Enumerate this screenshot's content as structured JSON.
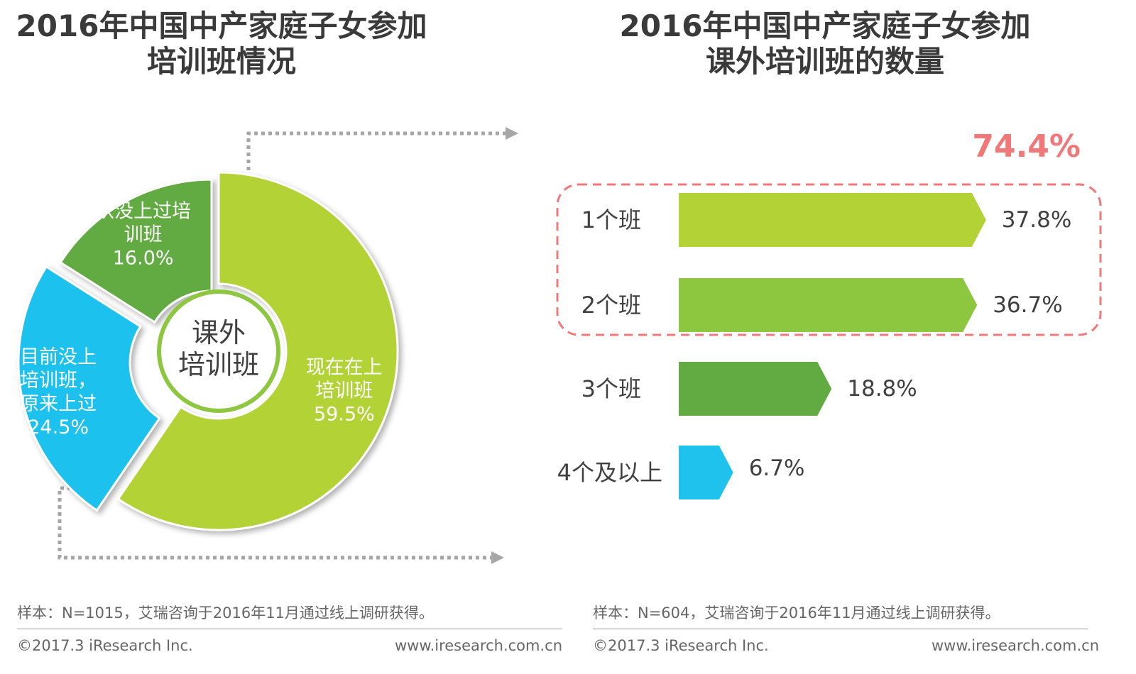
{
  "left_panel": {
    "title_line1": "2016年中国中产家庭子女参加",
    "title_line2": "培训班情况",
    "center_line1": "课外",
    "center_line2": "培训班",
    "sample_note": "样本：N=1015，艾瑞咨询于2016年11月通过线上调研获得。",
    "copyright": "©2017.3  iResearch Inc.",
    "url": "www.iresearch.com.cn"
  },
  "right_panel": {
    "title_line1": "2016年中国中产家庭子女参加",
    "title_line2": "课外培训班的数量",
    "highlight_total": "74.4%",
    "sample_note": "样本：N=604，艾瑞咨询于2016年11月通过线上调研获得。",
    "copyright": "©2017.3  iResearch Inc.",
    "url": "www.iresearch.com.cn"
  },
  "colors": {
    "green_light": "#b2d235",
    "green_mid": "#8dc63f",
    "green_dark": "#62ab43",
    "blue": "#1fc2ed",
    "highlight_red": "#f07878",
    "arrow_gray": "#a6a6a6"
  },
  "chart_data": [
    {
      "type": "pie",
      "variant": "donut",
      "title": "2016年中国中产家庭子女参加培训班情况",
      "slices": [
        {
          "label_lines": [
            "现在在上",
            "培训班"
          ],
          "value": 59.5,
          "value_label": "59.5%",
          "color": "#b2d235"
        },
        {
          "label_lines": [
            "目前没上",
            "培训班，",
            "原来上过"
          ],
          "value": 24.5,
          "value_label": "24.5%",
          "color": "#1fc2ed"
        },
        {
          "label_lines": [
            "从没上过培",
            "训班"
          ],
          "value": 16.0,
          "value_label": "16.0%",
          "color": "#62ab43"
        }
      ]
    },
    {
      "type": "bar",
      "orientation": "horizontal",
      "title": "2016年中国中产家庭子女参加课外培训班的数量",
      "categories": [
        "1个班",
        "2个班",
        "3个班",
        "4个及以上"
      ],
      "values": [
        37.8,
        36.7,
        18.8,
        6.7
      ],
      "value_labels": [
        "37.8%",
        "36.7%",
        "18.8%",
        "6.7%"
      ],
      "colors": [
        "#b2d235",
        "#8dc63f",
        "#62ab43",
        "#1fc2ed"
      ],
      "highlight": {
        "categories": [
          "1个班",
          "2个班"
        ],
        "label": "74.4%"
      }
    }
  ]
}
